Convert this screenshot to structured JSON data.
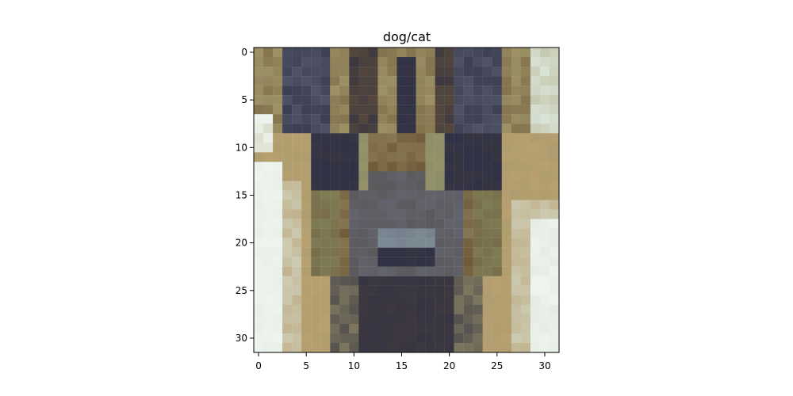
{
  "figure": {
    "title": "dog/cat"
  },
  "image": {
    "grid_size": 32,
    "description": "pixelated dog face",
    "palette": {
      "sky_light": "#eef4ef",
      "sky_mid": "#d9e3d7",
      "khaki": "#a59b6d",
      "olive": "#7f7c56",
      "brown": "#6f5a3a",
      "tan": "#b79f70",
      "dark_navy": "#303245",
      "shadow": "#3d3840",
      "grey_blue": "#6c6f82",
      "nose_grey": "#7b8b94",
      "muzzle": "#55524f",
      "olive_green": "#8d8e68"
    }
  },
  "axes": {
    "x_ticks": [
      "0",
      "5",
      "10",
      "15",
      "20",
      "25",
      "30"
    ],
    "y_ticks": [
      "0",
      "5",
      "10",
      "15",
      "20",
      "25",
      "30"
    ]
  }
}
